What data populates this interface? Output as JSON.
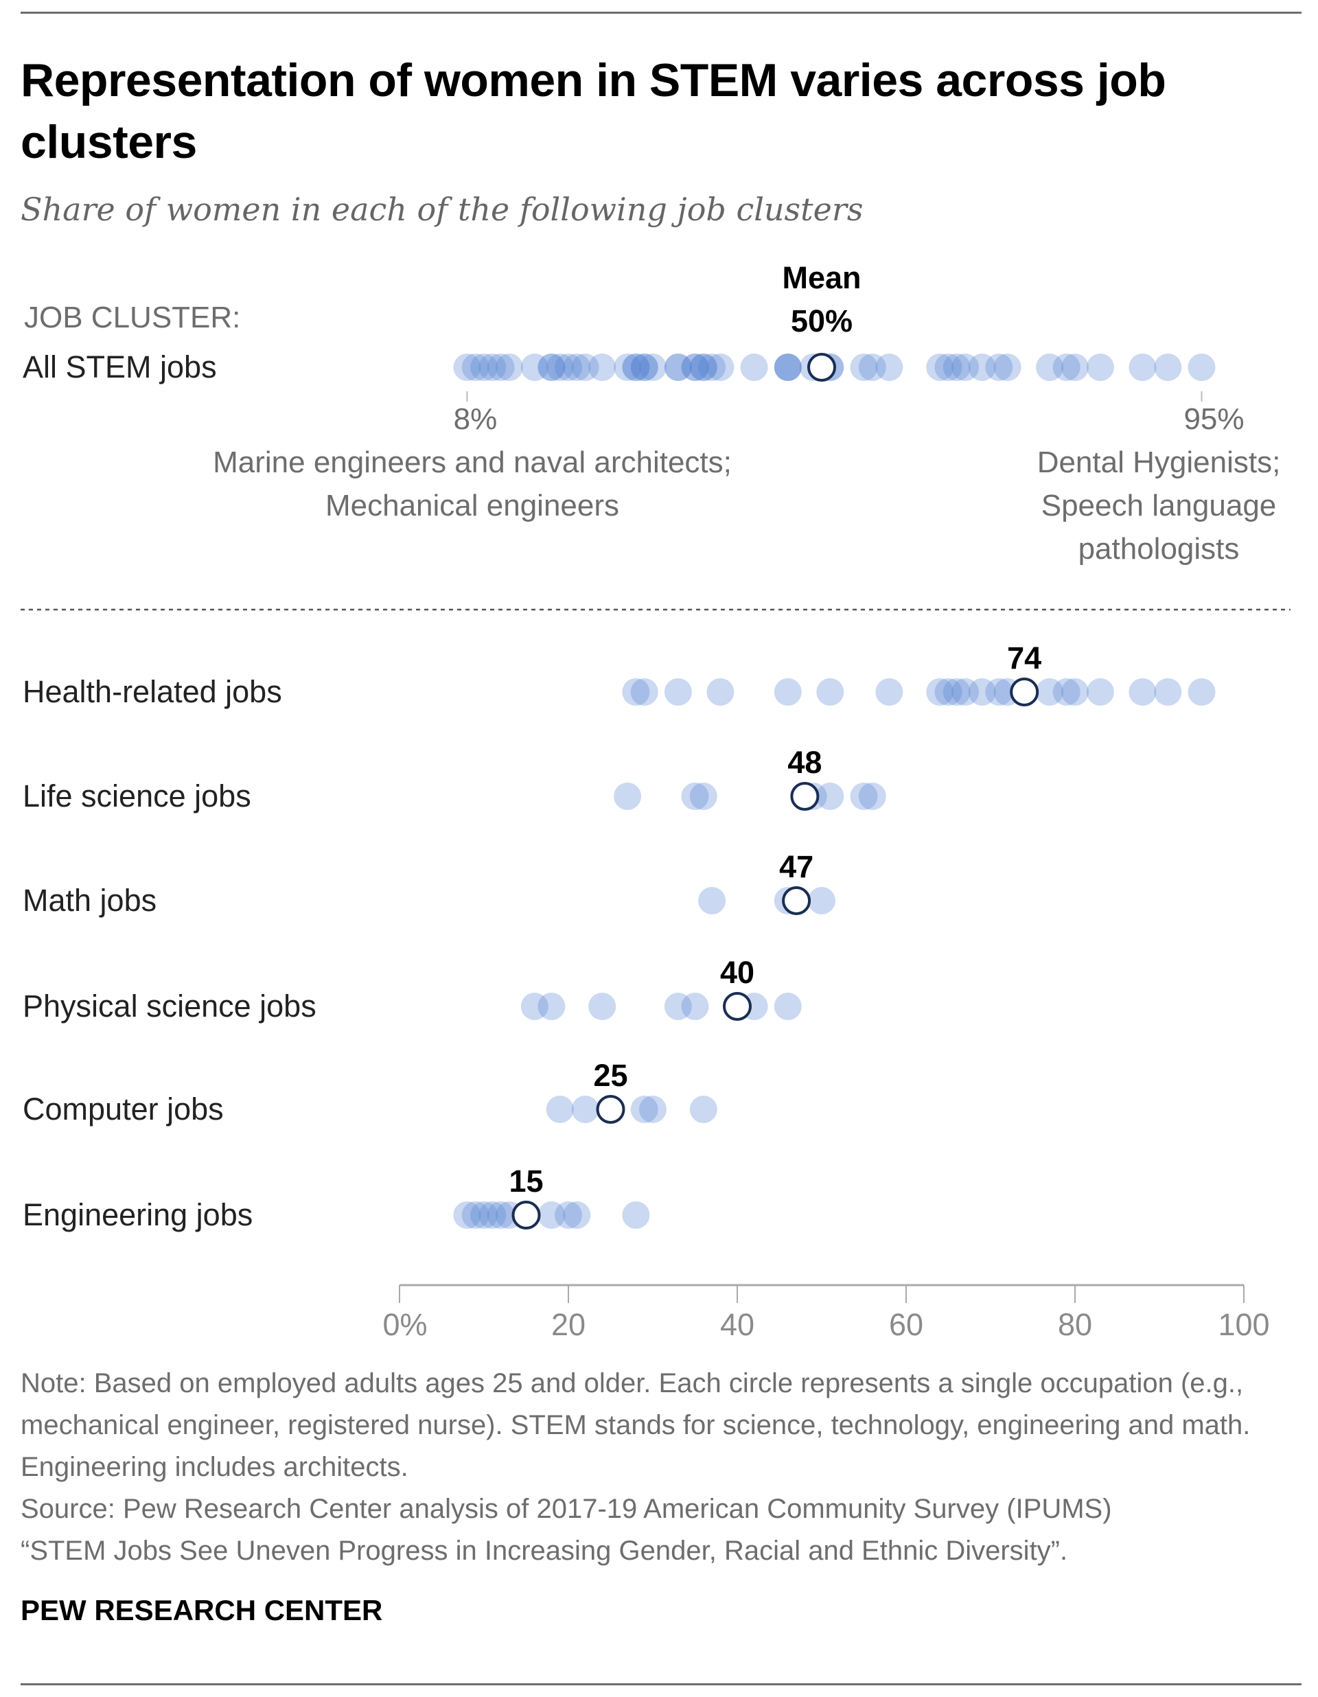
{
  "header": {
    "title": "Representation of women in STEM varies across job clusters",
    "subtitle": "Share of women in each of the following job clusters"
  },
  "chart_data": {
    "type": "scatter",
    "title": "Representation of women in STEM varies across job clusters",
    "subtitle": "Share of women in each of the following job clusters",
    "xlabel": "",
    "ylabel": "",
    "xlim": [
      0,
      100
    ],
    "x_ticks": [
      0,
      20,
      40,
      60,
      80,
      100
    ],
    "x_tick_labels": [
      "0%",
      "20",
      "40",
      "60",
      "80",
      "100"
    ],
    "grid": false,
    "colors": {
      "dot": "#4f7fd0",
      "mean_stroke": "#1a2e52",
      "mean_fill": "#ffffff"
    },
    "summary": {
      "section_label": "JOB CLUSTER:",
      "row_label": "All STEM jobs",
      "mean": 50,
      "mean_title": "Mean",
      "mean_label": "50%",
      "min": 8,
      "min_label": "8%",
      "min_annotation": [
        "Marine engineers and naval architects;",
        "Mechanical engineers"
      ],
      "max": 95,
      "max_label": "95%",
      "max_annotation": [
        "Dental Hygienists;",
        "Speech language",
        "pathologists"
      ]
    },
    "series": [
      {
        "name": "Health-related jobs",
        "mean": 74,
        "mean_label": "74",
        "values": [
          28,
          29,
          33,
          38,
          46,
          51,
          58,
          64,
          65,
          66,
          67,
          69,
          71,
          72,
          77,
          79,
          80,
          83,
          88,
          91,
          95
        ]
      },
      {
        "name": "Life science jobs",
        "mean": 48,
        "mean_label": "48",
        "values": [
          27,
          35,
          36,
          49,
          51,
          55,
          56
        ]
      },
      {
        "name": "Math jobs",
        "mean": 47,
        "mean_label": "47",
        "values": [
          37,
          46,
          50
        ]
      },
      {
        "name": "Physical science jobs",
        "mean": 40,
        "mean_label": "40",
        "values": [
          16,
          18,
          24,
          33,
          35,
          42,
          46
        ]
      },
      {
        "name": "Computer jobs",
        "mean": 25,
        "mean_label": "25",
        "values": [
          19,
          22,
          29,
          30,
          36
        ]
      },
      {
        "name": "Engineering jobs",
        "mean": 15,
        "mean_label": "15",
        "values": [
          8,
          9,
          10,
          11,
          12,
          13,
          18,
          20,
          21,
          28
        ]
      }
    ]
  },
  "footer": {
    "note_lines": [
      "Note: Based on employed adults ages 25 and older. Each circle represents a single occupation (e.g., mechanical engineer, registered nurse). STEM stands for science, technology, engineering and math. Engineering includes architects.",
      "Source: Pew Research Center analysis of 2017-19 American Community Survey (IPUMS)",
      "“STEM Jobs See Uneven Progress in Increasing Gender, Racial and Ethnic Diversity”."
    ],
    "brand": "PEW RESEARCH CENTER"
  }
}
